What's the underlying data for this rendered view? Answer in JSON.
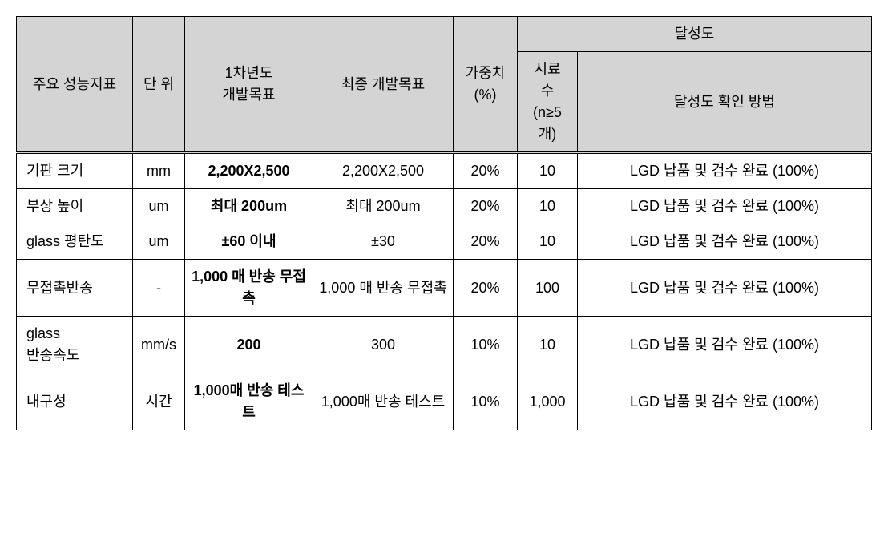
{
  "table": {
    "headers": {
      "indicator": "주요 성능지표",
      "unit": "단 위",
      "year1_goal": "1차년도\n개발목표",
      "final_goal": "최종 개발목표",
      "weight": "가중치\n(%)",
      "achievement": "달성도",
      "sample_count": "시료\n수\n(n≥5\n개)",
      "method": "달성도 확인 방법"
    },
    "rows": [
      {
        "indicator": "기판 크기",
        "unit": "mm",
        "year1_goal": "2,200X2,500",
        "year1_bold": true,
        "final_goal": "2,200X2,500",
        "weight": "20%",
        "sample_count": "10",
        "method": "LGD 납품 및 검수 완료 (100%)"
      },
      {
        "indicator": "부상 높이",
        "unit": "um",
        "year1_goal": "최대 200um",
        "year1_bold": true,
        "final_goal": "최대 200um",
        "weight": "20%",
        "sample_count": "10",
        "method": "LGD 납품 및 검수 완료 (100%)"
      },
      {
        "indicator": "glass 평탄도",
        "unit": "um",
        "year1_goal": "±60 이내",
        "year1_bold": true,
        "final_goal": "±30",
        "weight": "20%",
        "sample_count": "10",
        "method": "LGD 납품 및 검수 완료 (100%)"
      },
      {
        "indicator": "무접촉반송",
        "unit": "-",
        "year1_goal": "1,000 매 반송 무접촉",
        "year1_bold": true,
        "final_goal": "1,000 매 반송 무접촉",
        "weight": "20%",
        "sample_count": "100",
        "method": "LGD 납품 및 검수 완료 (100%)"
      },
      {
        "indicator": "glass\n반송속도",
        "unit": "mm/s",
        "year1_goal": "200",
        "year1_bold": true,
        "final_goal": "300",
        "weight": "10%",
        "sample_count": "10",
        "method": "LGD 납품 및 검수 완료 (100%)"
      },
      {
        "indicator": "내구성",
        "unit": "시간",
        "year1_goal": "1,000매 반송 테스트",
        "year1_bold": true,
        "final_goal": "1,000매 반송 테스트",
        "weight": "10%",
        "sample_count": "1,000",
        "method": "LGD 납품 및 검수 완료 (100%)"
      }
    ]
  },
  "styling": {
    "header_bg": "#d4d4d4",
    "border_color": "#000000",
    "font_size": 18,
    "page_bg": "#ffffff"
  }
}
